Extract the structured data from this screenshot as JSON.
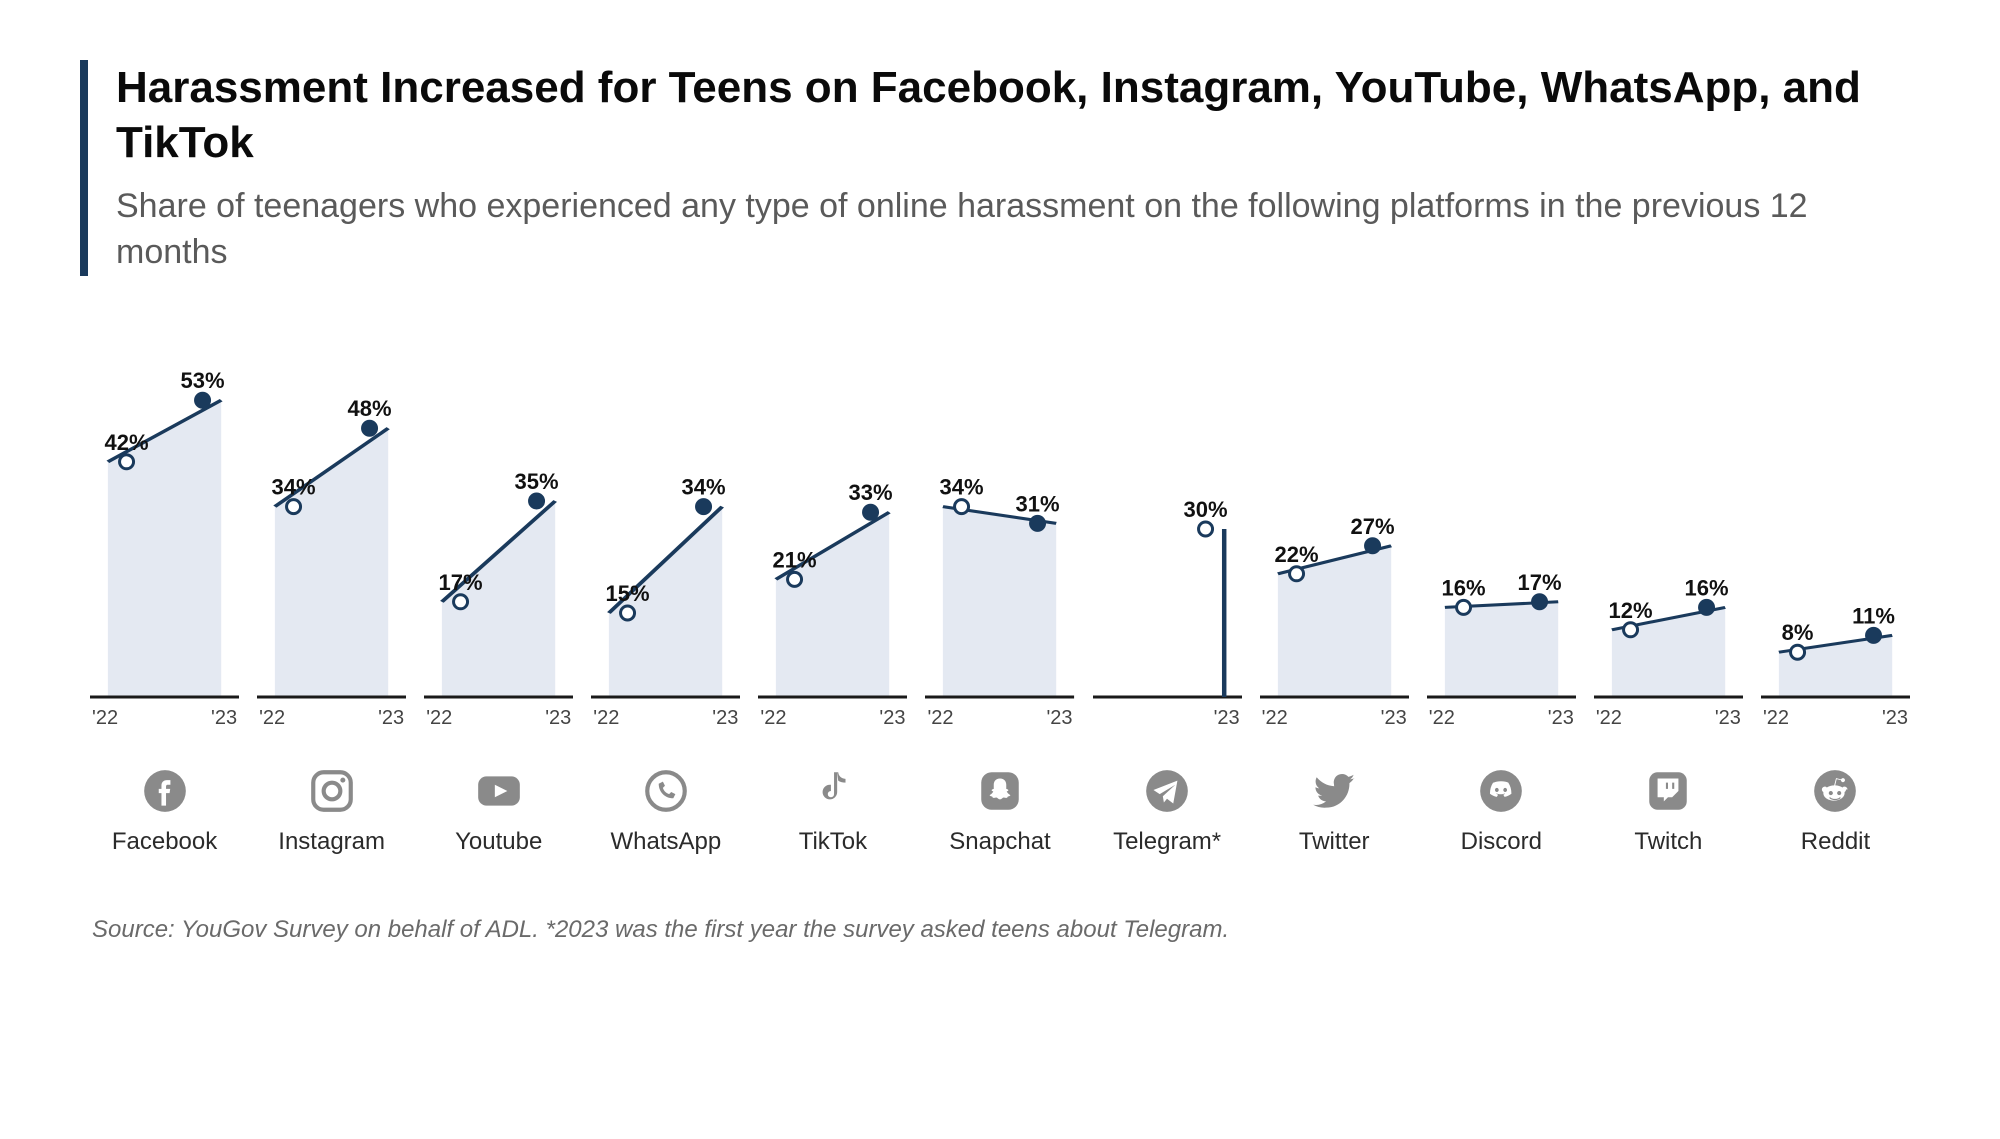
{
  "title": "Harassment Increased for Teens on Facebook, Instagram, YouTube, WhatsApp, and TikTok",
  "subtitle": "Share of teenagers who experienced any type of online harassment on the following platforms in the previous 12 months",
  "source": "Source: YouGov Survey on behalf of ADL. *2023 was the first year the survey asked teens about Telegram.",
  "year_labels": {
    "left": "'22",
    "right": "'23"
  },
  "chart": {
    "type": "slope",
    "y_max_percent": 60,
    "line_color": "#1a3a5c",
    "line_width": 3,
    "marker_radius": 7,
    "marker_open_fill": "#ffffff",
    "marker_stroke": "#1a3a5c",
    "marker_closed_fill": "#1a3a5c",
    "area_fill": "#e4e9f2",
    "baseline_color": "#1a1a1a",
    "baseline_width": 3,
    "value_label_fontsize": 22,
    "value_label_color": "#111111",
    "year_label_fontsize": 20,
    "year_label_color": "#444444",
    "platform_name_fontsize": 24,
    "icon_color": "#8a8a8a",
    "background_color": "#ffffff"
  },
  "platforms": [
    {
      "name": "Facebook",
      "icon": "facebook",
      "v22": 42,
      "v23": 53,
      "label22": "42%",
      "label23": "53%"
    },
    {
      "name": "Instagram",
      "icon": "instagram",
      "v22": 34,
      "v23": 48,
      "label22": "34%",
      "label23": "48%"
    },
    {
      "name": "Youtube",
      "icon": "youtube",
      "v22": 17,
      "v23": 35,
      "label22": "17%",
      "label23": "35%"
    },
    {
      "name": "WhatsApp",
      "icon": "whatsapp",
      "v22": 15,
      "v23": 34,
      "label22": "15%",
      "label23": "34%"
    },
    {
      "name": "TikTok",
      "icon": "tiktok",
      "v22": 21,
      "v23": 33,
      "label22": "21%",
      "label23": "33%"
    },
    {
      "name": "Snapchat",
      "icon": "snapchat",
      "v22": 34,
      "v23": 31,
      "label22": "34%",
      "label23": "31%"
    },
    {
      "name": "Telegram*",
      "icon": "telegram",
      "v22": null,
      "v23": 30,
      "label22": "",
      "label23": "30%"
    },
    {
      "name": "Twitter",
      "icon": "twitter",
      "v22": 22,
      "v23": 27,
      "label22": "22%",
      "label23": "27%"
    },
    {
      "name": "Discord",
      "icon": "discord",
      "v22": 16,
      "v23": 17,
      "label22": "16%",
      "label23": "17%"
    },
    {
      "name": "Twitch",
      "icon": "twitch",
      "v22": 12,
      "v23": 16,
      "label22": "12%",
      "label23": "16%"
    },
    {
      "name": "Reddit",
      "icon": "reddit",
      "v22": 8,
      "v23": 11,
      "label22": "8%",
      "label23": "11%"
    }
  ]
}
